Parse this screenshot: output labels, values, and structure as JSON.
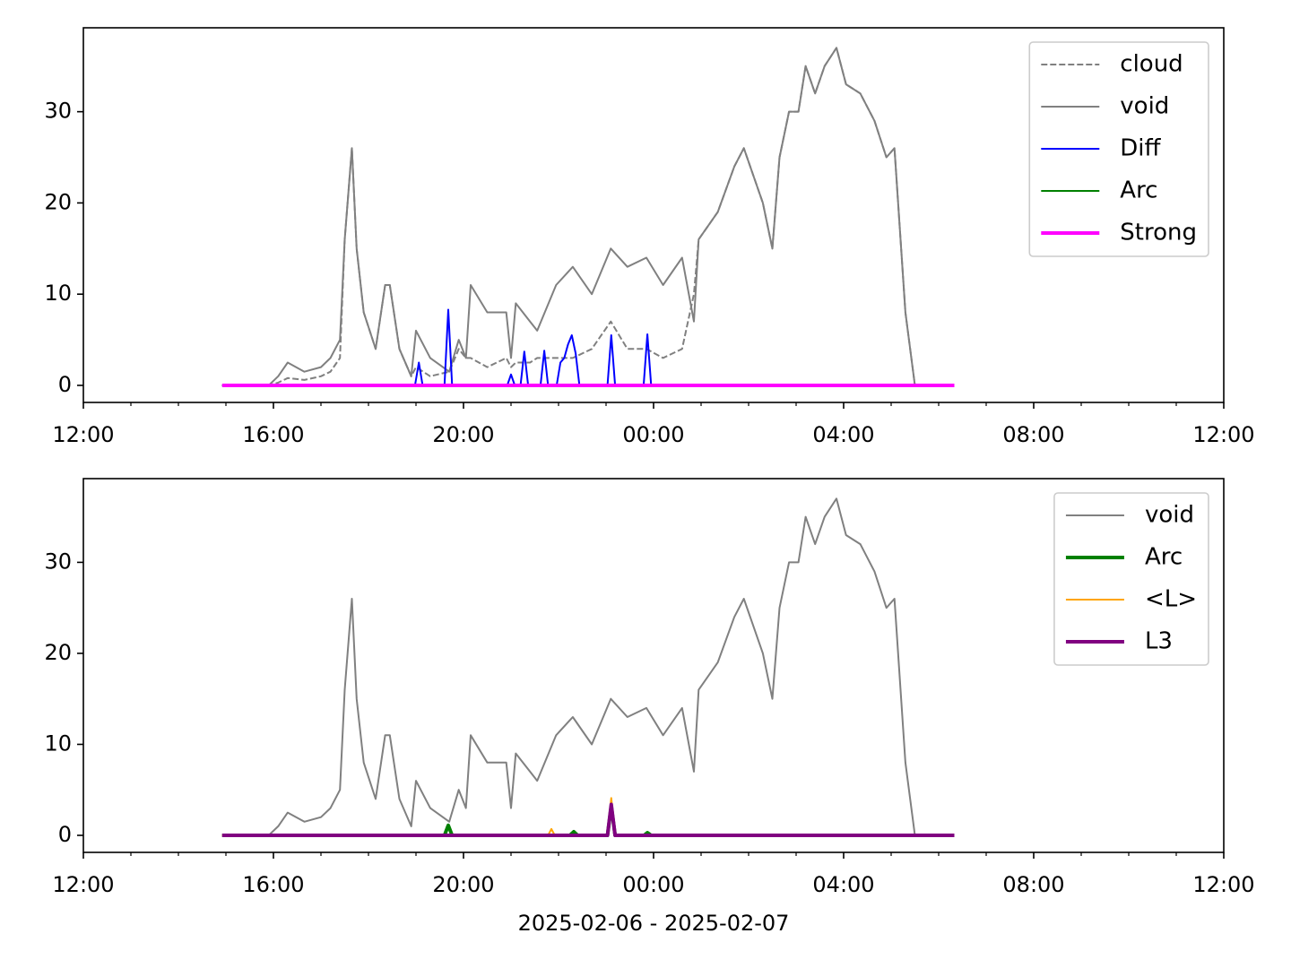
{
  "chart_data": [
    {
      "type": "line",
      "legend": "upper right",
      "xlim": [
        0,
        24
      ],
      "ylim": [
        -1.87,
        39.2
      ],
      "xticks": [
        {
          "value": 0,
          "label": "12:00"
        },
        {
          "value": 4,
          "label": "16:00"
        },
        {
          "value": 8,
          "label": "20:00"
        },
        {
          "value": 12,
          "label": "00:00"
        },
        {
          "value": 16,
          "label": "04:00"
        },
        {
          "value": 20,
          "label": "08:00"
        },
        {
          "value": 24,
          "label": "12:00"
        }
      ],
      "xminorticks": [
        1,
        2,
        3,
        5,
        6,
        7,
        9,
        10,
        11,
        13,
        14,
        15,
        17,
        18,
        19,
        21,
        22,
        23
      ],
      "yticks": [
        0,
        10,
        20,
        30
      ],
      "series": [
        {
          "name": "cloud",
          "color": "#808080",
          "linestyle": "dashed",
          "linewidth": 2,
          "x": [
            2.92,
            3.9,
            4.1,
            4.3,
            4.65,
            5.0,
            5.2,
            5.4,
            5.5,
            5.65,
            5.75,
            5.9,
            6.15,
            6.35,
            6.45,
            6.65,
            6.9,
            7.0,
            7.3,
            7.7,
            7.9,
            8.05,
            8.15,
            8.5,
            8.9,
            9.0,
            9.1,
            9.4,
            9.55,
            9.95,
            10.3,
            10.7,
            11.1,
            11.45,
            11.85,
            12.2,
            12.6,
            12.85,
            12.95,
            13.35,
            13.7,
            13.9,
            14.3,
            14.5,
            14.65,
            14.85,
            15.05,
            15.2,
            15.4,
            15.6,
            15.85,
            16.05,
            16.35,
            16.65,
            16.9,
            17.07,
            17.3,
            17.5,
            18.33
          ],
          "values": [
            0,
            0,
            0.3,
            0.8,
            0.6,
            1,
            1.5,
            3,
            16,
            26,
            15,
            8,
            4,
            11,
            11,
            4,
            1,
            2,
            1,
            1.5,
            4,
            3,
            3,
            2,
            3,
            2,
            2.5,
            2.5,
            3,
            3,
            3,
            4,
            7,
            4,
            4,
            3,
            4,
            10,
            16,
            19,
            24,
            26,
            20,
            15,
            25,
            30,
            30,
            35,
            32,
            35,
            37,
            33,
            32,
            29,
            25,
            26,
            8,
            0,
            0
          ]
        },
        {
          "name": "void",
          "color": "#808080",
          "linewidth": 2,
          "x": [
            2.92,
            3.9,
            4.1,
            4.3,
            4.65,
            5.0,
            5.2,
            5.4,
            5.5,
            5.65,
            5.75,
            5.9,
            6.15,
            6.35,
            6.45,
            6.65,
            6.9,
            7.0,
            7.3,
            7.7,
            7.9,
            8.05,
            8.15,
            8.5,
            8.9,
            9.0,
            9.1,
            9.4,
            9.55,
            9.95,
            10.3,
            10.7,
            11.1,
            11.45,
            11.85,
            12.2,
            12.6,
            12.85,
            12.95,
            13.35,
            13.7,
            13.9,
            14.3,
            14.5,
            14.65,
            14.85,
            15.05,
            15.2,
            15.4,
            15.6,
            15.85,
            16.05,
            16.35,
            16.65,
            16.9,
            17.07,
            17.3,
            17.5,
            18.33
          ],
          "values": [
            0,
            0,
            1,
            2.5,
            1.5,
            2,
            3,
            5,
            16,
            26,
            15,
            8,
            4,
            11,
            11,
            4,
            1,
            6,
            3,
            1.5,
            5,
            3,
            11,
            8,
            8,
            3,
            9,
            7,
            6,
            11,
            13,
            10,
            15,
            13,
            14,
            11,
            14,
            7,
            16,
            19,
            24,
            26,
            20,
            15,
            25,
            30,
            30,
            35,
            32,
            35,
            37,
            33,
            32,
            29,
            25,
            26,
            8,
            0,
            0
          ]
        },
        {
          "name": "Diff",
          "color": "#0000ff",
          "linewidth": 2,
          "x": [
            2.92,
            6.98,
            7.06,
            7.14,
            7.6,
            7.68,
            7.76,
            8.92,
            9.0,
            9.08,
            9.2,
            9.28,
            9.36,
            9.62,
            9.7,
            9.78,
            9.96,
            10.04,
            10.12,
            10.2,
            10.28,
            10.36,
            10.44,
            11.03,
            11.11,
            11.19,
            11.79,
            11.87,
            11.95,
            18.33
          ],
          "values": [
            0,
            0,
            2.5,
            0,
            0,
            8.3,
            0,
            0,
            1.2,
            0,
            0,
            3.7,
            0,
            0,
            3.8,
            0,
            0,
            2.5,
            3,
            4.5,
            5.5,
            3.5,
            0,
            0,
            5.5,
            0,
            0,
            5.6,
            0,
            0
          ]
        },
        {
          "name": "Arc",
          "color": "#008000",
          "linewidth": 2,
          "x": [
            2.92,
            18.33
          ],
          "values": [
            0,
            0
          ]
        },
        {
          "name": "Strong",
          "color": "#ff00ff",
          "linewidth": 4,
          "x": [
            2.92,
            18.33
          ],
          "values": [
            0,
            0
          ]
        }
      ]
    },
    {
      "type": "line",
      "legend": "upper right",
      "xlim": [
        0,
        24
      ],
      "ylim": [
        -1.87,
        39.2
      ],
      "xlabel": "2025-02-06 - 2025-02-07",
      "xticks": [
        {
          "value": 0,
          "label": "12:00"
        },
        {
          "value": 4,
          "label": "16:00"
        },
        {
          "value": 8,
          "label": "20:00"
        },
        {
          "value": 12,
          "label": "00:00"
        },
        {
          "value": 16,
          "label": "04:00"
        },
        {
          "value": 20,
          "label": "08:00"
        },
        {
          "value": 24,
          "label": "12:00"
        }
      ],
      "xminorticks": [
        1,
        2,
        3,
        5,
        6,
        7,
        9,
        10,
        11,
        13,
        14,
        15,
        17,
        18,
        19,
        21,
        22,
        23
      ],
      "yticks": [
        0,
        10,
        20,
        30
      ],
      "series": [
        {
          "name": "void",
          "color": "#808080",
          "linewidth": 2,
          "x": [
            2.92,
            3.9,
            4.1,
            4.3,
            4.65,
            5.0,
            5.2,
            5.4,
            5.5,
            5.65,
            5.75,
            5.9,
            6.15,
            6.35,
            6.45,
            6.65,
            6.9,
            7.0,
            7.3,
            7.7,
            7.9,
            8.05,
            8.15,
            8.5,
            8.9,
            9.0,
            9.1,
            9.4,
            9.55,
            9.95,
            10.3,
            10.7,
            11.1,
            11.45,
            11.85,
            12.2,
            12.6,
            12.85,
            12.95,
            13.35,
            13.7,
            13.9,
            14.3,
            14.5,
            14.65,
            14.85,
            15.05,
            15.2,
            15.4,
            15.6,
            15.85,
            16.05,
            16.35,
            16.65,
            16.9,
            17.07,
            17.3,
            17.5,
            18.33
          ],
          "values": [
            0,
            0,
            1,
            2.5,
            1.5,
            2,
            3,
            5,
            16,
            26,
            15,
            8,
            4,
            11,
            11,
            4,
            1,
            6,
            3,
            1.5,
            5,
            3,
            11,
            8,
            8,
            3,
            9,
            7,
            6,
            11,
            13,
            10,
            15,
            13,
            14,
            11,
            14,
            7,
            16,
            19,
            24,
            26,
            20,
            15,
            25,
            30,
            30,
            35,
            32,
            35,
            37,
            33,
            32,
            29,
            25,
            26,
            8,
            0,
            0
          ]
        },
        {
          "name": "Arc",
          "color": "#008000",
          "linewidth": 4,
          "x": [
            2.92,
            7.6,
            7.68,
            7.76,
            10.24,
            10.32,
            10.4,
            11.03,
            11.11,
            11.19,
            11.8,
            11.87,
            11.95,
            18.33
          ],
          "values": [
            0,
            0,
            1.1,
            0,
            0,
            0.4,
            0,
            0,
            3.2,
            0,
            0,
            0.3,
            0,
            0
          ]
        },
        {
          "name": "<L>",
          "color": "#ffa500",
          "linewidth": 2,
          "x": [
            2.92,
            9.78,
            9.85,
            9.92,
            11.03,
            11.11,
            11.19,
            18.33
          ],
          "values": [
            0,
            0,
            0.7,
            0,
            0,
            4.1,
            0,
            0
          ]
        },
        {
          "name": "L3",
          "color": "#800080",
          "linewidth": 4,
          "x": [
            2.92,
            11.03,
            11.11,
            11.19,
            18.33
          ],
          "values": [
            0,
            0,
            3.4,
            0,
            0
          ]
        }
      ]
    }
  ]
}
